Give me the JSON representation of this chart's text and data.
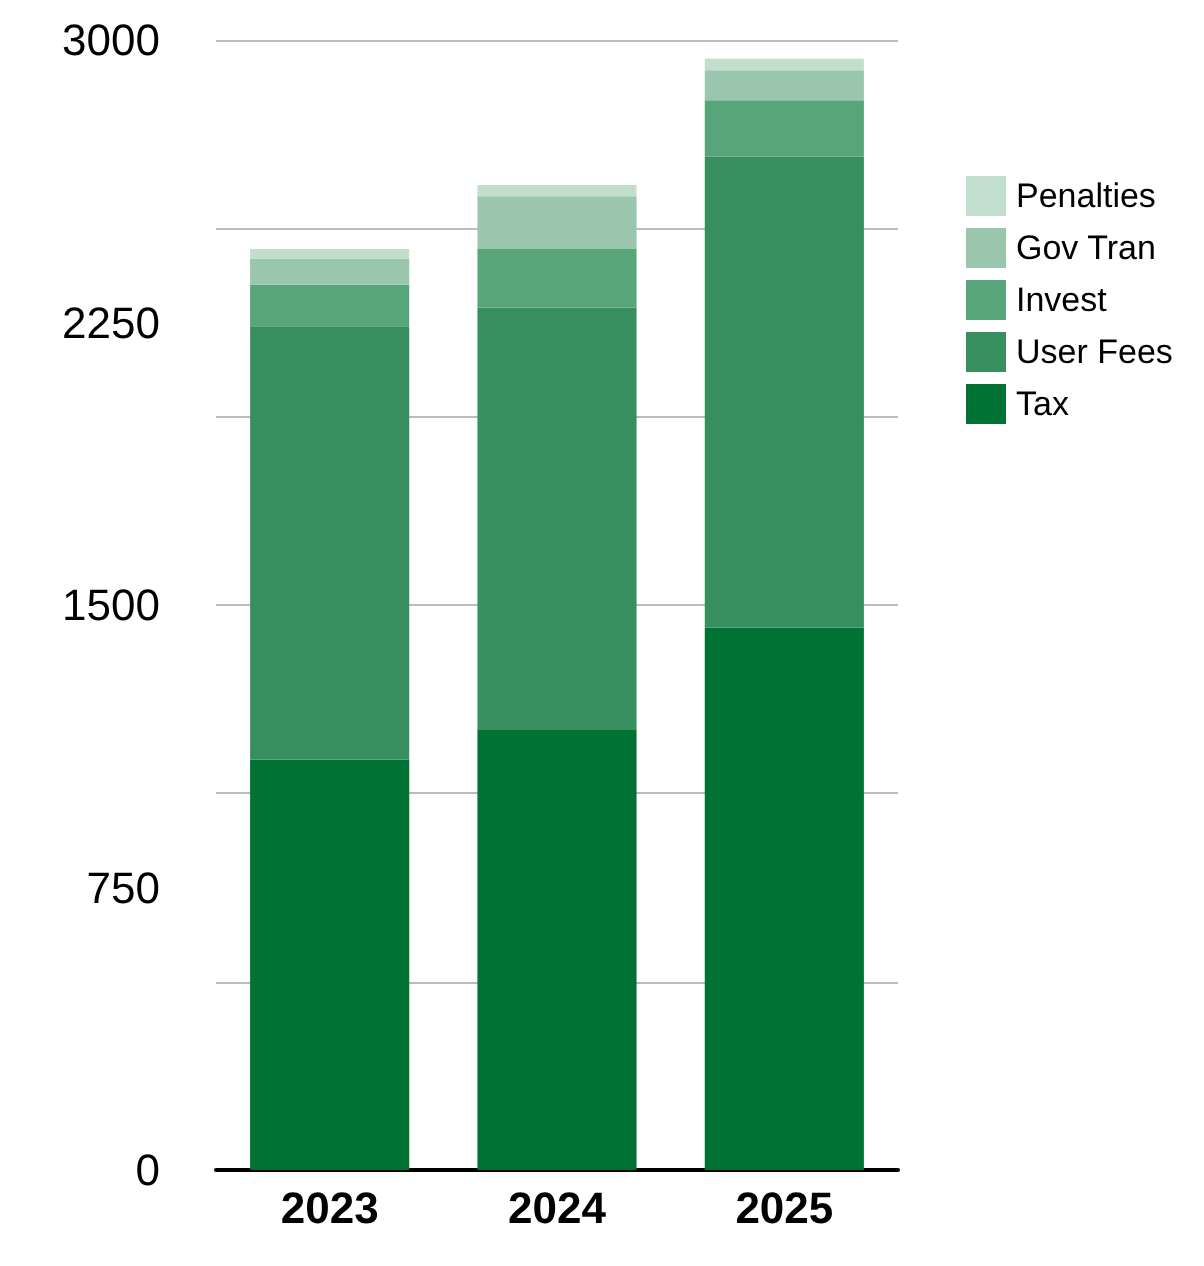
{
  "chart_data": {
    "type": "bar",
    "stacked": true,
    "categories": [
      "2023",
      "2024",
      "2025"
    ],
    "series": [
      {
        "name": "Tax",
        "color": "#007233",
        "values": [
          1090,
          1170,
          1440
        ]
      },
      {
        "name": "User Fees",
        "color": "#378f5f",
        "values": [
          1150,
          1120,
          1250
        ]
      },
      {
        "name": "Invest",
        "color": "#58a57b",
        "values": [
          110,
          155,
          150
        ]
      },
      {
        "name": "Gov Tran",
        "color": "#9ac6ae",
        "values": [
          70,
          140,
          80
        ]
      },
      {
        "name": "Penalties",
        "color": "#c2dfce",
        "values": [
          25,
          30,
          30
        ]
      }
    ],
    "ylim": [
      0,
      3000
    ],
    "yticks": [
      0,
      750,
      1500,
      2250,
      3000
    ],
    "grid": "y",
    "legend": "right"
  }
}
